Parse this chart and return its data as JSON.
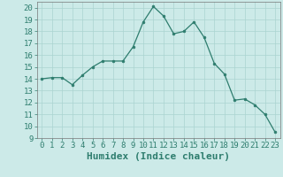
{
  "x": [
    0,
    1,
    2,
    3,
    4,
    5,
    6,
    7,
    8,
    9,
    10,
    11,
    12,
    13,
    14,
    15,
    16,
    17,
    18,
    19,
    20,
    21,
    22,
    23
  ],
  "y": [
    14.0,
    14.1,
    14.1,
    13.5,
    14.3,
    15.0,
    15.5,
    15.5,
    15.5,
    16.7,
    18.8,
    20.1,
    19.3,
    17.8,
    18.0,
    18.8,
    17.5,
    15.3,
    14.4,
    12.2,
    12.3,
    11.8,
    11.0,
    9.5
  ],
  "xlabel": "Humidex (Indice chaleur)",
  "xlim": [
    -0.5,
    23.5
  ],
  "ylim": [
    9,
    20.5
  ],
  "yticks": [
    9,
    10,
    11,
    12,
    13,
    14,
    15,
    16,
    17,
    18,
    19,
    20
  ],
  "xticks": [
    0,
    1,
    2,
    3,
    4,
    5,
    6,
    7,
    8,
    9,
    10,
    11,
    12,
    13,
    14,
    15,
    16,
    17,
    18,
    19,
    20,
    21,
    22,
    23
  ],
  "line_color": "#2e7d6e",
  "marker_color": "#2e7d6e",
  "bg_color": "#cceae8",
  "grid_color": "#aad4d0",
  "xlabel_fontsize": 8,
  "tick_fontsize": 6.5
}
